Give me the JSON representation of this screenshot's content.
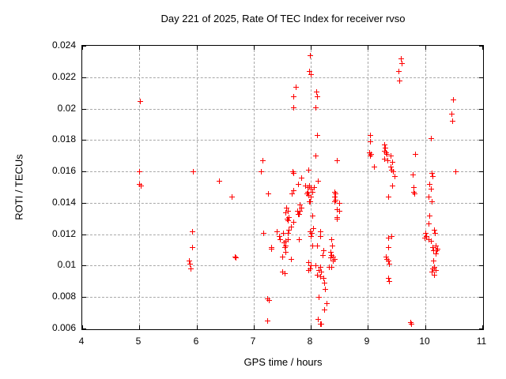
{
  "chart_data": {
    "type": "scatter",
    "title": "Day 221 of 2025, Rate Of TEC Index for receiver rvso",
    "xlabel": "GPS time / hours",
    "ylabel": "ROTI / TECUs",
    "xlim": [
      4,
      11
    ],
    "ylim": [
      0.006,
      0.024
    ],
    "xticks": [
      4,
      5,
      6,
      7,
      8,
      9,
      10,
      11
    ],
    "xtick_labels": [
      "4",
      "5",
      "6",
      "7",
      "8",
      "9",
      "10",
      "11"
    ],
    "yticks": [
      0.006,
      0.008,
      0.01,
      0.012,
      0.014,
      0.016,
      0.018,
      0.02,
      0.022,
      0.024
    ],
    "ytick_labels": [
      "0.006",
      "0.008",
      "0.01",
      "0.012",
      "0.014",
      "0.016",
      "0.018",
      "0.02",
      "0.022",
      "0.024"
    ],
    "grid": true,
    "legend": "none",
    "marker": "plus",
    "marker_color": "#ff0000",
    "series": [
      {
        "name": "ROTI",
        "points": [
          [
            5.01,
            0.0205
          ],
          [
            5.0,
            0.016
          ],
          [
            5.0,
            0.0152
          ],
          [
            5.02,
            0.0151
          ],
          [
            5.93,
            0.016
          ],
          [
            5.92,
            0.0122
          ],
          [
            5.92,
            0.0112
          ],
          [
            5.87,
            0.0103
          ],
          [
            5.88,
            0.0101
          ],
          [
            5.89,
            0.0098
          ],
          [
            6.39,
            0.0154
          ],
          [
            6.62,
            0.0144
          ],
          [
            6.67,
            0.0106
          ],
          [
            6.68,
            0.0105
          ],
          [
            7.15,
            0.0167
          ],
          [
            7.12,
            0.016
          ],
          [
            7.25,
            0.0146
          ],
          [
            7.17,
            0.0121
          ],
          [
            7.3,
            0.0112
          ],
          [
            7.3,
            0.0111
          ],
          [
            7.24,
            0.0079
          ],
          [
            7.27,
            0.0078
          ],
          [
            7.24,
            0.0065
          ],
          [
            7.73,
            0.0214
          ],
          [
            7.7,
            0.0208
          ],
          [
            7.7,
            0.0201
          ],
          [
            7.68,
            0.016
          ],
          [
            7.7,
            0.0159
          ],
          [
            7.69,
            0.0148
          ],
          [
            7.66,
            0.0146
          ],
          [
            7.67,
            0.0146
          ],
          [
            7.57,
            0.0137
          ],
          [
            7.59,
            0.0135
          ],
          [
            7.55,
            0.0134
          ],
          [
            7.61,
            0.0131
          ],
          [
            7.58,
            0.013
          ],
          [
            7.6,
            0.0129
          ],
          [
            7.7,
            0.0128
          ],
          [
            7.65,
            0.0125
          ],
          [
            7.61,
            0.0123
          ],
          [
            7.4,
            0.0122
          ],
          [
            7.51,
            0.0121
          ],
          [
            7.59,
            0.0121
          ],
          [
            7.44,
            0.0119
          ],
          [
            7.46,
            0.0117
          ],
          [
            7.59,
            0.0117
          ],
          [
            7.56,
            0.0116
          ],
          [
            7.53,
            0.0115
          ],
          [
            7.56,
            0.0113
          ],
          [
            7.54,
            0.0112
          ],
          [
            7.56,
            0.0109
          ],
          [
            7.5,
            0.0106
          ],
          [
            7.65,
            0.0104
          ],
          [
            7.5,
            0.0096
          ],
          [
            7.54,
            0.0095
          ],
          [
            7.83,
            0.0156
          ],
          [
            7.78,
            0.0152
          ],
          [
            7.8,
            0.0139
          ],
          [
            7.83,
            0.0137
          ],
          [
            7.76,
            0.0135
          ],
          [
            7.81,
            0.0135
          ],
          [
            7.79,
            0.0133
          ],
          [
            7.77,
            0.0133
          ],
          [
            7.79,
            0.0117
          ],
          [
            7.99,
            0.0234
          ],
          [
            7.97,
            0.0224
          ],
          [
            8.0,
            0.0222
          ],
          [
            8.1,
            0.0211
          ],
          [
            8.11,
            0.0208
          ],
          [
            8.08,
            0.0201
          ],
          [
            8.11,
            0.0183
          ],
          [
            8.08,
            0.017
          ],
          [
            7.95,
            0.0161
          ],
          [
            8.12,
            0.0154
          ],
          [
            7.9,
            0.0151
          ],
          [
            7.97,
            0.0151
          ],
          [
            7.94,
            0.015
          ],
          [
            8.06,
            0.015
          ],
          [
            8.0,
            0.0149
          ],
          [
            7.94,
            0.0147
          ],
          [
            8.03,
            0.0147
          ],
          [
            7.93,
            0.0146
          ],
          [
            7.96,
            0.0145
          ],
          [
            8.0,
            0.0144
          ],
          [
            7.97,
            0.0141
          ],
          [
            7.99,
            0.0141
          ],
          [
            8.03,
            0.0132
          ],
          [
            8.04,
            0.0124
          ],
          [
            7.98,
            0.0122
          ],
          [
            8.16,
            0.0122
          ],
          [
            8.01,
            0.0121
          ],
          [
            8.0,
            0.0119
          ],
          [
            8.17,
            0.0119
          ],
          [
            8.11,
            0.0113
          ],
          [
            8.03,
            0.0113
          ],
          [
            7.96,
            0.0102
          ],
          [
            8.0,
            0.01
          ],
          [
            8.08,
            0.01
          ],
          [
            8.16,
            0.0099
          ],
          [
            7.99,
            0.0098
          ],
          [
            8.13,
            0.0097
          ],
          [
            7.96,
            0.0097
          ],
          [
            8.18,
            0.0096
          ],
          [
            8.11,
            0.0094
          ],
          [
            8.16,
            0.0093
          ],
          [
            8.22,
            0.0092
          ],
          [
            8.23,
            0.0089
          ],
          [
            8.25,
            0.0085
          ],
          [
            8.13,
            0.008
          ],
          [
            8.27,
            0.0076
          ],
          [
            8.23,
            0.0072
          ],
          [
            8.12,
            0.0066
          ],
          [
            8.16,
            0.0063
          ],
          [
            8.18,
            0.0063
          ],
          [
            8.46,
            0.0167
          ],
          [
            8.41,
            0.0147
          ],
          [
            8.42,
            0.0146
          ],
          [
            8.41,
            0.0144
          ],
          [
            8.42,
            0.0142
          ],
          [
            8.41,
            0.0141
          ],
          [
            8.5,
            0.014
          ],
          [
            8.45,
            0.0136
          ],
          [
            8.49,
            0.0135
          ],
          [
            8.45,
            0.0131
          ],
          [
            8.46,
            0.013
          ],
          [
            8.36,
            0.0117
          ],
          [
            8.37,
            0.0113
          ],
          [
            8.22,
            0.011
          ],
          [
            8.35,
            0.0109
          ],
          [
            8.2,
            0.0107
          ],
          [
            8.36,
            0.0107
          ],
          [
            8.38,
            0.0106
          ],
          [
            8.35,
            0.0105
          ],
          [
            8.41,
            0.0104
          ],
          [
            8.39,
            0.0103
          ],
          [
            8.32,
            0.0099
          ],
          [
            8.36,
            0.0099
          ],
          [
            9.04,
            0.0183
          ],
          [
            9.04,
            0.0179
          ],
          [
            9.02,
            0.0172
          ],
          [
            9.05,
            0.0171
          ],
          [
            9.03,
            0.017
          ],
          [
            9.1,
            0.0163
          ],
          [
            9.28,
            0.0177
          ],
          [
            9.3,
            0.0175
          ],
          [
            9.28,
            0.0173
          ],
          [
            9.31,
            0.0172
          ],
          [
            9.33,
            0.0171
          ],
          [
            9.29,
            0.0168
          ],
          [
            9.34,
            0.0167
          ],
          [
            9.4,
            0.017
          ],
          [
            9.42,
            0.0166
          ],
          [
            9.39,
            0.0163
          ],
          [
            9.41,
            0.0161
          ],
          [
            9.44,
            0.016
          ],
          [
            9.47,
            0.0157
          ],
          [
            9.42,
            0.0151
          ],
          [
            9.35,
            0.0144
          ],
          [
            9.41,
            0.0119
          ],
          [
            9.36,
            0.0118
          ],
          [
            9.36,
            0.0112
          ],
          [
            9.31,
            0.0106
          ],
          [
            9.33,
            0.0104
          ],
          [
            9.35,
            0.0103
          ],
          [
            9.37,
            0.0101
          ],
          [
            9.36,
            0.0092
          ],
          [
            9.37,
            0.009
          ],
          [
            9.57,
            0.0232
          ],
          [
            9.59,
            0.0229
          ],
          [
            9.53,
            0.0224
          ],
          [
            9.55,
            0.0218
          ],
          [
            9.82,
            0.0171
          ],
          [
            9.78,
            0.0158
          ],
          [
            9.8,
            0.015
          ],
          [
            9.79,
            0.0147
          ],
          [
            9.81,
            0.0146
          ],
          [
            9.74,
            0.0064
          ],
          [
            9.76,
            0.0063
          ],
          [
            10.1,
            0.0181
          ],
          [
            10.11,
            0.0159
          ],
          [
            10.13,
            0.0157
          ],
          [
            10.07,
            0.0152
          ],
          [
            10.1,
            0.0149
          ],
          [
            10.06,
            0.0144
          ],
          [
            10.11,
            0.0141
          ],
          [
            10.07,
            0.0132
          ],
          [
            10.06,
            0.0127
          ],
          [
            10.0,
            0.0121
          ],
          [
            10.02,
            0.0119
          ],
          [
            9.99,
            0.0118
          ],
          [
            10.06,
            0.0117
          ],
          [
            10.1,
            0.0116
          ],
          [
            10.15,
            0.0123
          ],
          [
            10.17,
            0.0121
          ],
          [
            10.19,
            0.0113
          ],
          [
            10.13,
            0.0112
          ],
          [
            10.21,
            0.0111
          ],
          [
            10.2,
            0.011
          ],
          [
            10.14,
            0.011
          ],
          [
            10.19,
            0.0108
          ],
          [
            10.14,
            0.0103
          ],
          [
            10.16,
            0.0099
          ],
          [
            10.13,
            0.0098
          ],
          [
            10.18,
            0.0097
          ],
          [
            10.12,
            0.0096
          ],
          [
            10.15,
            0.0094
          ],
          [
            10.49,
            0.0206
          ],
          [
            10.46,
            0.0197
          ],
          [
            10.47,
            0.0192
          ],
          [
            10.53,
            0.016
          ]
        ]
      }
    ]
  }
}
